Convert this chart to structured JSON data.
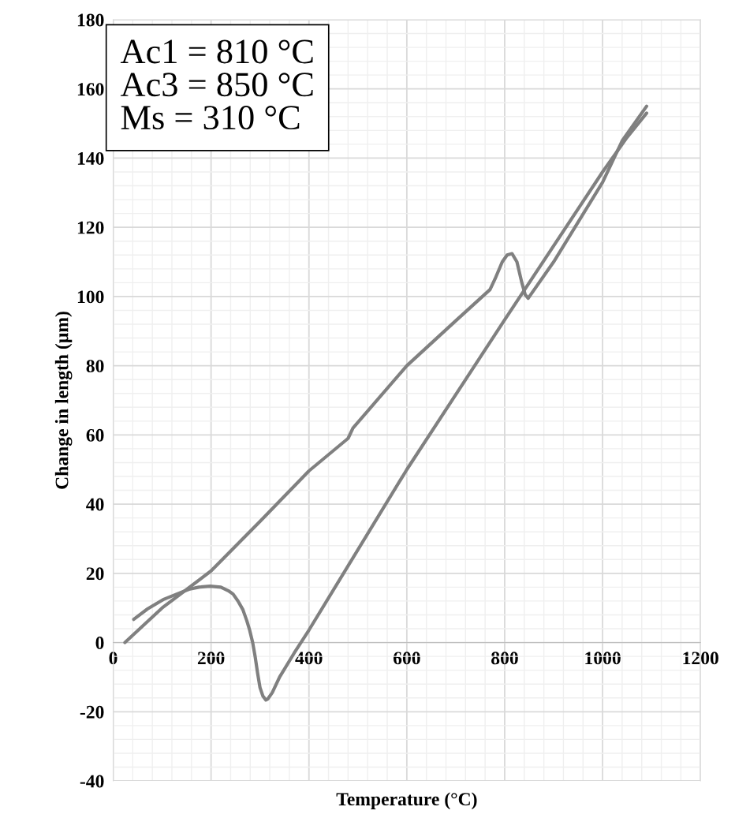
{
  "chart_data": {
    "type": "line",
    "xlabel": "Temperature (°C)",
    "ylabel": "Change in length (µm)",
    "annotations": [
      "Ac1 = 810 °C\nAc3 = 850 °C\nMs = 310 °C"
    ],
    "xlim": [
      0,
      1200
    ],
    "xticks": [
      0,
      200,
      400,
      600,
      800,
      1000,
      1200
    ],
    "ylim": [
      -40,
      180
    ],
    "yticks": [
      -40,
      -20,
      0,
      20,
      40,
      60,
      80,
      100,
      120,
      140,
      160,
      180
    ],
    "grid": true,
    "line_style": "solid",
    "marker": "none",
    "series": [
      {
        "color": "#808080",
        "x": [
          24,
          100,
          200,
          300,
          400,
          480,
          490,
          600,
          700,
          770,
          780,
          795,
          805,
          815,
          825,
          835,
          842,
          848,
          900,
          1000,
          1040,
          1090
        ],
        "values": [
          0,
          10,
          20.7,
          35,
          49.6,
          59,
          62,
          80,
          93,
          102,
          105,
          110,
          112,
          112.4,
          110,
          104,
          100.5,
          99.5,
          110,
          133,
          145,
          155
        ]
      },
      {
        "color": "#808080",
        "x": [
          1090,
          1050,
          1000,
          800,
          600,
          400,
          370,
          340,
          325,
          316,
          312,
          306,
          300,
          295,
          290,
          285,
          279,
          273,
          265,
          255,
          245,
          235,
          220,
          198,
          175,
          155,
          130,
          102,
          70,
          42
        ],
        "values": [
          153,
          146,
          136,
          93.3,
          50,
          3.6,
          -3,
          -10,
          -14.5,
          -16.3,
          -16.6,
          -15.5,
          -13,
          -8.8,
          -4,
          0,
          3.5,
          6.3,
          9.5,
          12,
          14,
          15,
          16,
          16.3,
          16,
          15.4,
          14,
          12.4,
          9.7,
          6.7
        ]
      }
    ]
  }
}
